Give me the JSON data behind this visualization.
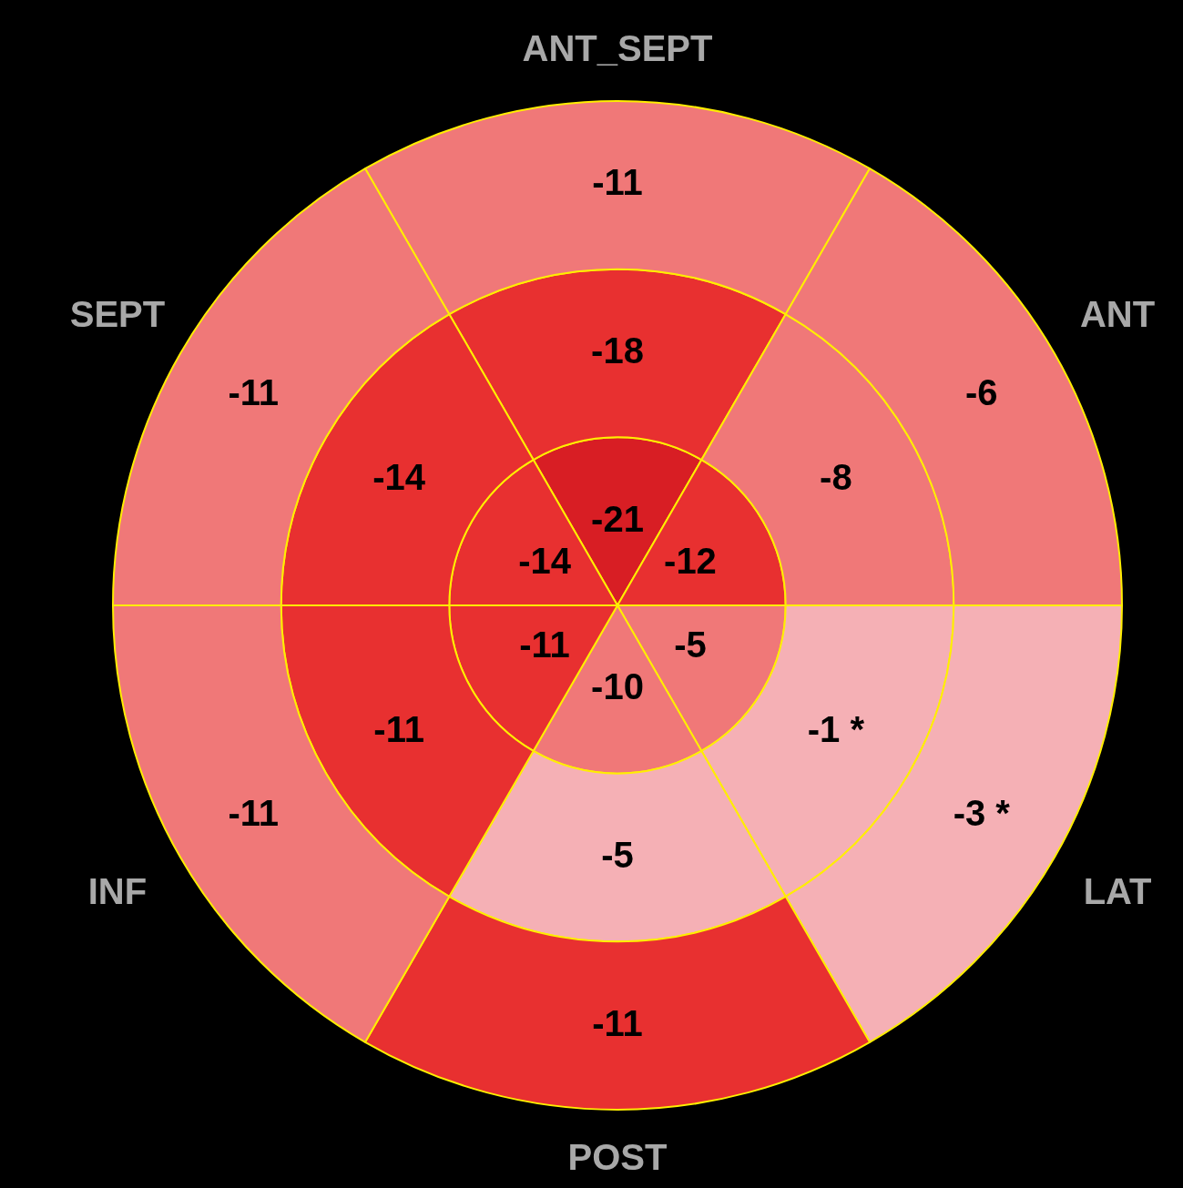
{
  "chart_data": {
    "type": "other",
    "categories": [
      "ANT_SEPT",
      "ANT",
      "LAT",
      "POST",
      "INF",
      "SEPT"
    ],
    "series": [
      {
        "values": [
          -11,
          -6,
          -3,
          -11,
          -11,
          -11
        ],
        "value_labels": [
          "-11",
          "-6",
          "-3 *",
          "-11",
          "-11",
          "-11"
        ],
        "colors": [
          "#f07878",
          "#f07878",
          "#f5b0b5",
          "#e83030",
          "#f07878",
          "#f07878"
        ]
      },
      {
        "values": [
          -18,
          -8,
          -1,
          -5,
          -11,
          -14
        ],
        "value_labels": [
          "-18",
          "-8",
          "-1 *",
          "-5",
          "-11",
          "-14"
        ],
        "colors": [
          "#e83030",
          "#f07878",
          "#f5b0b5",
          "#f5b0b5",
          "#e83030",
          "#e83030"
        ]
      },
      {
        "values": [
          -21,
          -12,
          -5,
          -10,
          -11,
          -14
        ],
        "value_labels": [
          "-21",
          "-12",
          "-5",
          "-10",
          "-11",
          "-14"
        ],
        "colors": [
          "#d81e24",
          "#e83030",
          "#f07878",
          "#f07878",
          "#e83030",
          "#e83030"
        ]
      }
    ]
  }
}
